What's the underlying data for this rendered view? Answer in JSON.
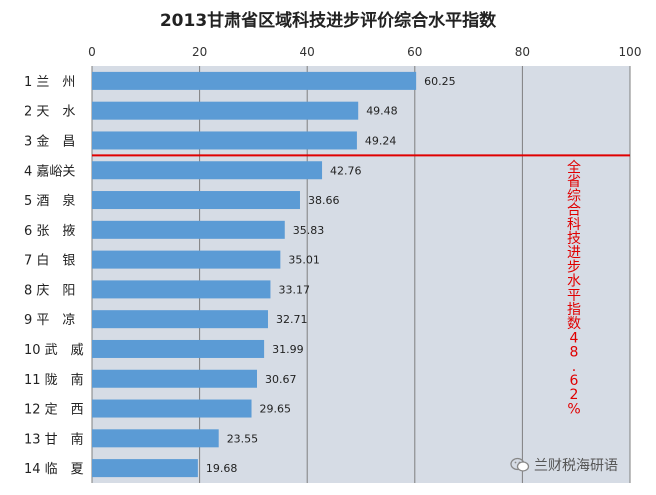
{
  "chart_data": {
    "type": "bar",
    "orientation": "horizontal",
    "title": "2013甘肃省区域科技进步评价综合水平指数",
    "xlim": [
      0,
      100
    ],
    "x_ticks": [
      0,
      20,
      40,
      60,
      80,
      100
    ],
    "grid": true,
    "categories": [
      "1 兰　州",
      "2 天　水",
      "3 金　昌",
      "4 嘉峪关",
      "5 酒　泉",
      "6 张　掖",
      "7 白　银",
      "8 庆　阳",
      "9 平　凉",
      "10 武　威",
      "11 陇　南",
      "12 定　西",
      "13 甘　南",
      "14 临　夏"
    ],
    "values": [
      60.25,
      49.48,
      49.24,
      42.76,
      38.66,
      35.83,
      35.01,
      33.17,
      32.71,
      31.99,
      30.67,
      29.65,
      23.55,
      19.68
    ],
    "bar_color": "#5b9bd5",
    "plot_bg": "#d6dce5",
    "reference_line": {
      "after_category_index": 2,
      "label": "全省综合科技进步水平指数48.62%",
      "color": "#e00000"
    }
  },
  "watermark": {
    "text": "兰财税海研语",
    "icon": "wechat-icon"
  }
}
